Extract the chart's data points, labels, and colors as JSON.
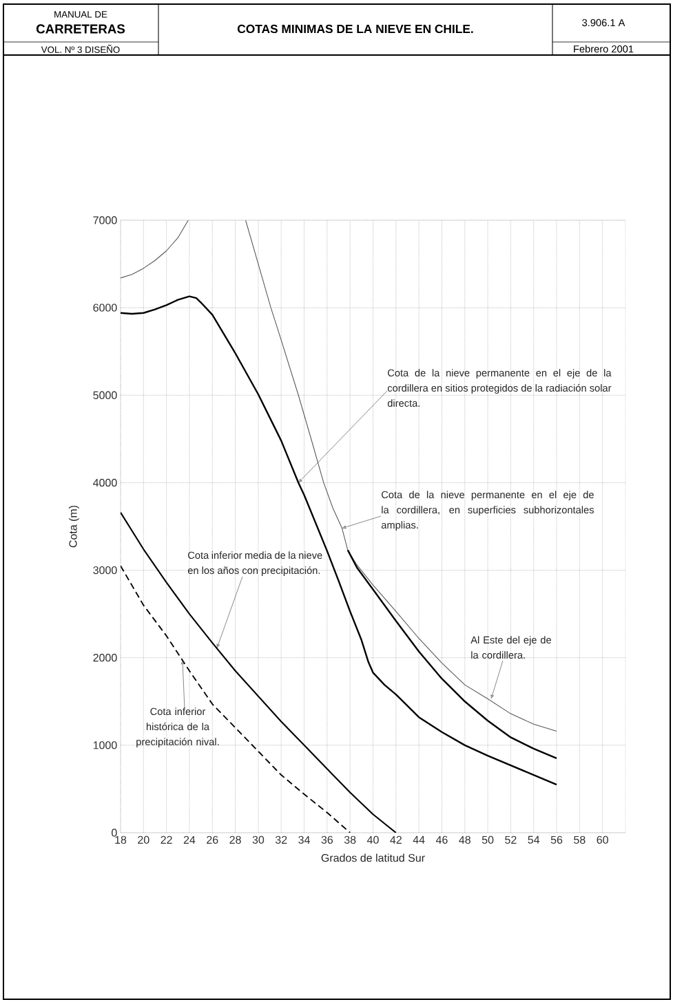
{
  "chart_data": {
    "type": "line",
    "title": "COTAS MINIMAS DE LA NIEVE EN CHILE.",
    "xlabel": "Grados de latitud Sur",
    "ylabel": "Cota (m)",
    "annotations": [
      "MANUAL DE",
      "CARRETERAS",
      "VOL. Nº 3 DISEÑO",
      "3.906.1 A",
      "Febrero 2001",
      {
        "text": "Cota de la nieve permanente en el eje de la cordillera en sitios protegidos de la radiación solar directa.",
        "x": 33.5,
        "y": 4000
      },
      {
        "text": "Cota de la nieve permanente en el eje de la cordillera, en superficies subhorizontales amplias.",
        "x": 37.3,
        "y": 3480
      },
      {
        "text": "Cota inferior media de la nieve en los años con precipitación.",
        "x": 26.4,
        "y": 2110
      },
      {
        "text": "Cota inferior histórica de la precipitación nival.",
        "x": 23.4,
        "y": 1970
      },
      {
        "text": "Al Este del eje de la cordillera.",
        "x": 50.3,
        "y": 1530
      }
    ],
    "xlim": [
      18,
      62
    ],
    "ylim": [
      0,
      7000
    ],
    "xticks": [
      18,
      20,
      22,
      24,
      26,
      28,
      30,
      32,
      34,
      36,
      38,
      40,
      42,
      44,
      46,
      48,
      50,
      52,
      54,
      56,
      58,
      60
    ],
    "yticks": [
      0,
      1000,
      2000,
      3000,
      4000,
      5000,
      6000,
      7000
    ],
    "grid": true,
    "series": [
      {
        "color": "#555555",
        "x": [
          18,
          19,
          20,
          21,
          22,
          23,
          23.9,
          26,
          28.9,
          30,
          31.1,
          32,
          33.5,
          34.5,
          35.7,
          36.5,
          37.3,
          37.8,
          38.6,
          40,
          42,
          44,
          46,
          48,
          50,
          52,
          54,
          56
        ],
        "values": [
          6340,
          6380,
          6450,
          6540,
          6650,
          6800,
          7000,
          null,
          7000,
          6500,
          6000,
          5630,
          5000,
          4550,
          4000,
          3710,
          3480,
          3230,
          3060,
          2830,
          2530,
          2220,
          1940,
          1690,
          1530,
          1360,
          1240,
          1160
        ]
      },
      {
        "color": "#000000",
        "x": [
          18,
          19,
          20,
          21,
          22,
          23,
          24,
          24.6,
          25,
          26,
          28,
          30,
          32,
          33.5,
          34,
          35,
          36,
          37,
          38,
          39,
          39.6,
          40,
          41,
          42,
          44,
          46,
          48,
          50,
          52,
          54,
          56
        ],
        "values": [
          5940,
          5930,
          5940,
          5980,
          6030,
          6090,
          6130,
          6110,
          6060,
          5920,
          5480,
          5010,
          4480,
          4000,
          3860,
          3540,
          3220,
          2880,
          2530,
          2200,
          1950,
          1830,
          1690,
          1580,
          1320,
          1150,
          1000,
          880,
          770,
          660,
          550
        ]
      },
      {
        "color": "#000000",
        "x": [
          37.8,
          38.6,
          40,
          42,
          44,
          46,
          48,
          50,
          52,
          54,
          56
        ],
        "values": [
          3230,
          3030,
          2780,
          2420,
          2070,
          1760,
          1500,
          1280,
          1090,
          960,
          850
        ]
      },
      {
        "color": "#000000",
        "x": [
          18,
          20,
          22,
          24,
          26,
          28,
          30,
          32,
          34,
          36,
          38,
          40,
          42
        ],
        "values": [
          3660,
          3240,
          2860,
          2500,
          2170,
          1850,
          1560,
          1270,
          1000,
          730,
          460,
          210,
          0
        ]
      },
      {
        "color": "#000000",
        "line_style": "dashed",
        "x": [
          18,
          20,
          22,
          24,
          26,
          28,
          30,
          32,
          34,
          36,
          38
        ],
        "values": [
          3050,
          2600,
          2250,
          1850,
          1470,
          1200,
          930,
          660,
          440,
          230,
          0
        ]
      }
    ]
  }
}
